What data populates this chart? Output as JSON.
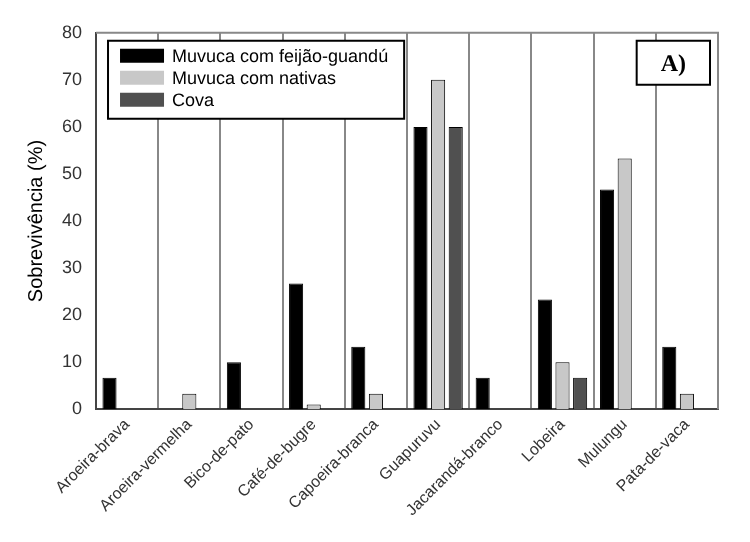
{
  "chart_data": {
    "type": "bar",
    "ylabel": "Sobrevivência (%)",
    "categories": [
      "Aroeira-brava",
      "Aroeira-vermelha",
      "Bico-de-pato",
      "Café-de-bugre",
      "Capoeira-branca",
      "Guapuruvu",
      "Jacarandá-branco",
      "Lobeira",
      "Mulungu",
      "Pata-de-vaca"
    ],
    "series": [
      {
        "name": "Muvuca com feijão-guandú",
        "color": "#000000",
        "values": [
          6.7,
          0,
          10,
          26.7,
          13.3,
          60,
          6.7,
          23.3,
          46.7,
          13.3
        ]
      },
      {
        "name": "Muvuca com nativas",
        "color": "#c8c8c8",
        "values": [
          0,
          3.3,
          0,
          1,
          3.3,
          70,
          0,
          10,
          53.3,
          3.3
        ]
      },
      {
        "name": "Cova",
        "color": "#505050",
        "values": [
          0,
          0,
          0,
          0,
          0,
          60,
          0,
          6.7,
          0,
          0
        ]
      }
    ],
    "ylim": [
      0,
      80
    ],
    "yticks": [
      0,
      10,
      20,
      30,
      40,
      50,
      60,
      70,
      80
    ],
    "grid": "x",
    "legend": "top left",
    "annotations": [
      "A)"
    ]
  }
}
